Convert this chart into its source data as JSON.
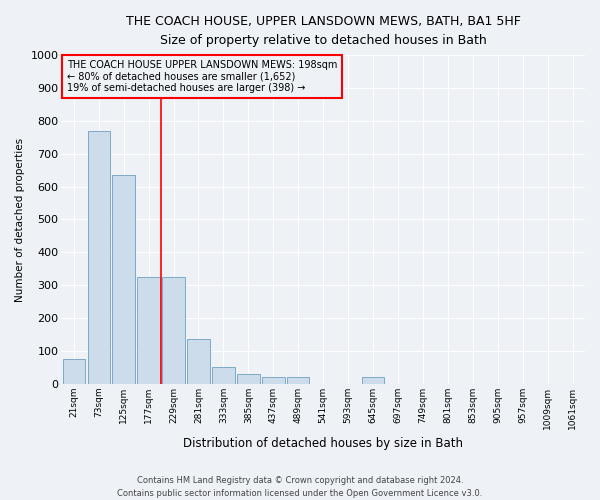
{
  "title": "THE COACH HOUSE, UPPER LANSDOWN MEWS, BATH, BA1 5HF",
  "subtitle": "Size of property relative to detached houses in Bath",
  "xlabel": "Distribution of detached houses by size in Bath",
  "ylabel": "Number of detached properties",
  "bar_color": "#ccdcea",
  "bar_edge_color": "#7aaac8",
  "categories": [
    "21sqm",
    "73sqm",
    "125sqm",
    "177sqm",
    "229sqm",
    "281sqm",
    "333sqm",
    "385sqm",
    "437sqm",
    "489sqm",
    "541sqm",
    "593sqm",
    "645sqm",
    "697sqm",
    "749sqm",
    "801sqm",
    "853sqm",
    "905sqm",
    "957sqm",
    "1009sqm",
    "1061sqm"
  ],
  "values": [
    75,
    770,
    635,
    325,
    325,
    135,
    50,
    30,
    22,
    20,
    0,
    0,
    20,
    0,
    0,
    0,
    0,
    0,
    0,
    0,
    0
  ],
  "ylim": [
    0,
    1000
  ],
  "yticks": [
    0,
    100,
    200,
    300,
    400,
    500,
    600,
    700,
    800,
    900,
    1000
  ],
  "red_line_x": 3.5,
  "annotation_title": "THE COACH HOUSE UPPER LANSDOWN MEWS: 198sqm",
  "annotation_line1": "← 80% of detached houses are smaller (1,652)",
  "annotation_line2": "19% of semi-detached houses are larger (398) →",
  "footer1": "Contains HM Land Registry data © Crown copyright and database right 2024.",
  "footer2": "Contains public sector information licensed under the Open Government Licence v3.0.",
  "background_color": "#eef2f7",
  "grid_color": "#ffffff"
}
